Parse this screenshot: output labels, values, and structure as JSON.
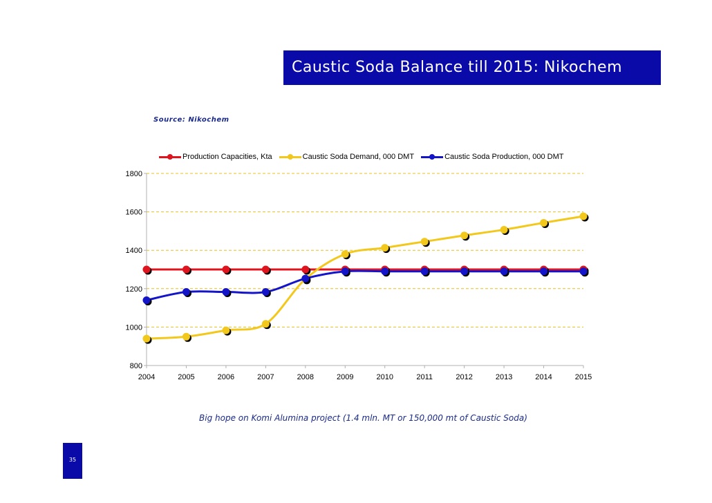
{
  "slide": {
    "title": "Caustic Soda Balance till 2015: Nikochem",
    "source": "Source: Nikochem",
    "footnote": "Big hope on Komi Alumina project (1.4 mln. MT or 150,000 mt of Caustic Soda)",
    "page_number": "35",
    "accent_color": "#0a0aa8"
  },
  "chart_data": {
    "type": "line",
    "title": "",
    "xlabel": "",
    "ylabel": "",
    "x": [
      "2004",
      "2005",
      "2006",
      "2007",
      "2008",
      "2009",
      "2010",
      "2011",
      "2012",
      "2013",
      "2014",
      "2015"
    ],
    "ylim": [
      800,
      1800
    ],
    "yticks": [
      800,
      1000,
      1200,
      1400,
      1600,
      1800
    ],
    "grid": "horizontal dashed",
    "legend_position": "top",
    "series": [
      {
        "name": "Production Capacities, Kta",
        "color": "#e0141e",
        "values": [
          1300,
          1300,
          1300,
          1300,
          1300,
          1300,
          1300,
          1300,
          1300,
          1300,
          1300,
          1300
        ]
      },
      {
        "name": "Caustic Soda Demand, 000 DMT",
        "color": "#f2c81c",
        "values": [
          940,
          950,
          983,
          1017,
          1250,
          1380,
          1413,
          1445,
          1477,
          1507,
          1543,
          1577
        ]
      },
      {
        "name": "Caustic Soda Production, 000 DMT",
        "color": "#1414c8",
        "values": [
          1140,
          1183,
          1183,
          1183,
          1253,
          1290,
          1290,
          1290,
          1290,
          1290,
          1290,
          1290
        ]
      }
    ]
  }
}
